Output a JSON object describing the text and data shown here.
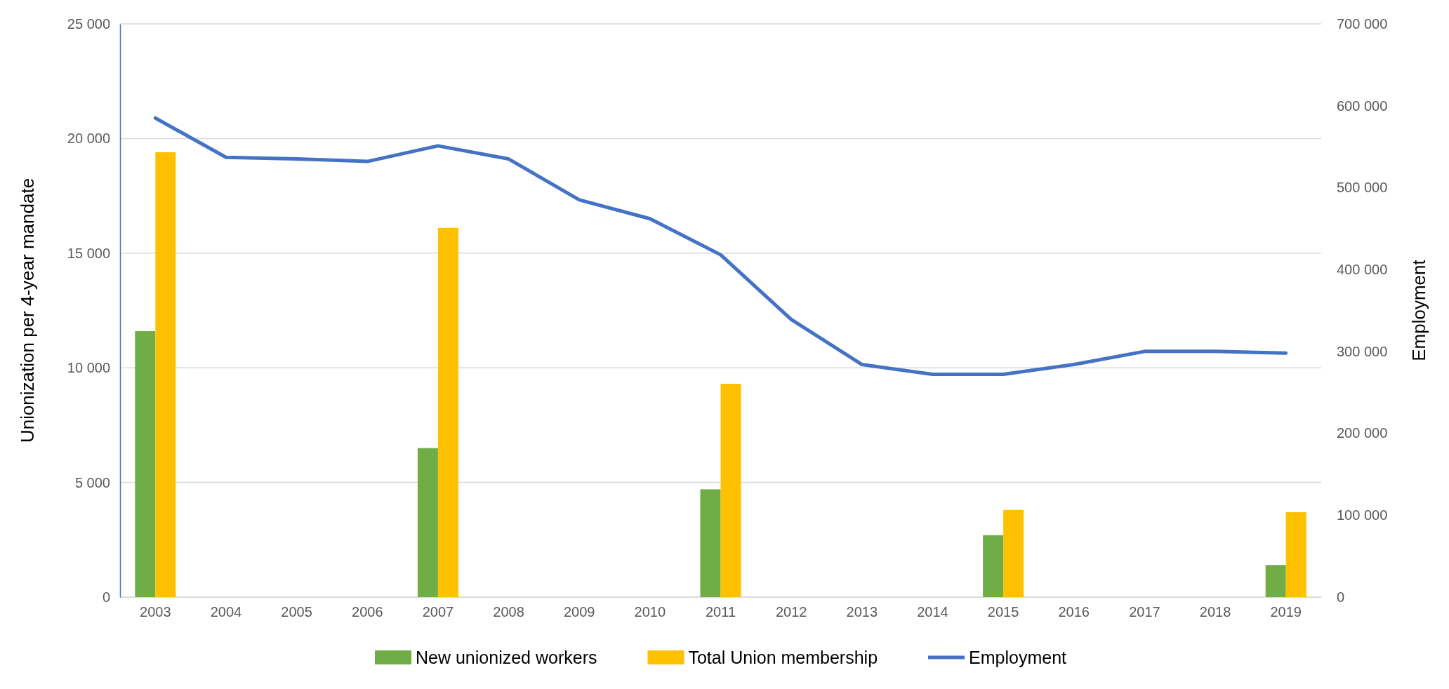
{
  "chart_data": {
    "type": "bar",
    "ylabel": "Unionization per 4-year mandate",
    "y2label": "Employment",
    "categories": [
      "2003",
      "2004",
      "2005",
      "2006",
      "2007",
      "2008",
      "2009",
      "2010",
      "2011",
      "2012",
      "2013",
      "2014",
      "2015",
      "2016",
      "2017",
      "2018",
      "2019"
    ],
    "series": [
      {
        "name": "New unionized workers",
        "color": "#70ad47",
        "values": [
          11600,
          null,
          null,
          null,
          6500,
          null,
          null,
          null,
          4700,
          null,
          null,
          null,
          2700,
          null,
          null,
          null,
          1400
        ]
      },
      {
        "name": "Total Union membership",
        "color": "#ffc000",
        "values": [
          19400,
          null,
          null,
          null,
          16100,
          null,
          null,
          null,
          9300,
          null,
          null,
          null,
          3800,
          null,
          null,
          null,
          3700
        ]
      },
      {
        "name": "Employment",
        "type": "line",
        "axis": "y2",
        "color": "#4472c4",
        "values": [
          585000,
          537000,
          535000,
          532000,
          551000,
          535000,
          485000,
          462000,
          418000,
          339000,
          284000,
          272000,
          272000,
          284000,
          300000,
          300000,
          298000
        ]
      }
    ],
    "ylim": [
      0,
      25000
    ],
    "yticks": [
      0,
      {
        "value": 5000,
        "label": "5 000"
      },
      {
        "value": 10000,
        "label": "10 000"
      },
      {
        "value": 15000,
        "label": "15 000"
      },
      {
        "value": 20000,
        "label": "20 000"
      },
      {
        "value": 25000,
        "label": "25 000"
      }
    ],
    "y2lim": [
      0,
      700000
    ],
    "y2ticks": [
      0,
      {
        "value": 100000,
        "label": "100 000"
      },
      {
        "value": 200000,
        "label": "200 000"
      },
      {
        "value": 300000,
        "label": "300 000"
      },
      {
        "value": 400000,
        "label": "400 000"
      },
      {
        "value": 500000,
        "label": "500 000"
      },
      {
        "value": 600000,
        "label": "600 000"
      },
      {
        "value": 700000,
        "label": "700 000"
      }
    ],
    "grid": "y",
    "legend": "bottom",
    "marker": "none",
    "line_style": "solid"
  }
}
